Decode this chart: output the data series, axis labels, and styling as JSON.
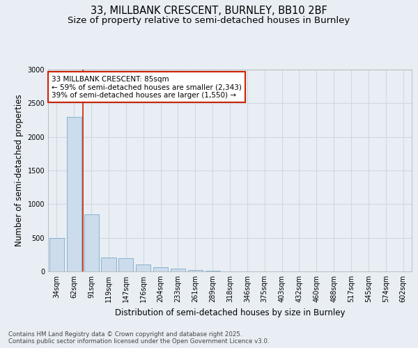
{
  "title_line1": "33, MILLBANK CRESCENT, BURNLEY, BB10 2BF",
  "title_line2": "Size of property relative to semi-detached houses in Burnley",
  "xlabel": "Distribution of semi-detached houses by size in Burnley",
  "ylabel": "Number of semi-detached properties",
  "categories": [
    "34sqm",
    "62sqm",
    "91sqm",
    "119sqm",
    "147sqm",
    "176sqm",
    "204sqm",
    "233sqm",
    "261sqm",
    "289sqm",
    "318sqm",
    "346sqm",
    "375sqm",
    "403sqm",
    "432sqm",
    "460sqm",
    "488sqm",
    "517sqm",
    "545sqm",
    "574sqm",
    "602sqm"
  ],
  "values": [
    500,
    2300,
    850,
    205,
    195,
    100,
    65,
    40,
    25,
    13,
    5,
    3,
    2,
    1,
    0,
    0,
    0,
    0,
    0,
    0,
    0
  ],
  "bar_color": "#ccdcec",
  "bar_edge_color": "#7aaac8",
  "highlight_line_color": "#cc2200",
  "annotation_box_text": "33 MILLBANK CRESCENT: 85sqm\n← 59% of semi-detached houses are smaller (2,343)\n39% of semi-detached houses are larger (1,550) →",
  "annotation_box_color": "#cc2200",
  "ylim": [
    0,
    3000
  ],
  "yticks": [
    0,
    500,
    1000,
    1500,
    2000,
    2500,
    3000
  ],
  "footer_text": "Contains HM Land Registry data © Crown copyright and database right 2025.\nContains public sector information licensed under the Open Government Licence v3.0.",
  "bg_color": "#e8eef4",
  "grid_color": "#d0d8e0",
  "title_fontsize": 10.5,
  "subtitle_fontsize": 9.5,
  "label_fontsize": 8.5,
  "tick_fontsize": 7,
  "annotation_fontsize": 7.5,
  "footer_fontsize": 6.2
}
